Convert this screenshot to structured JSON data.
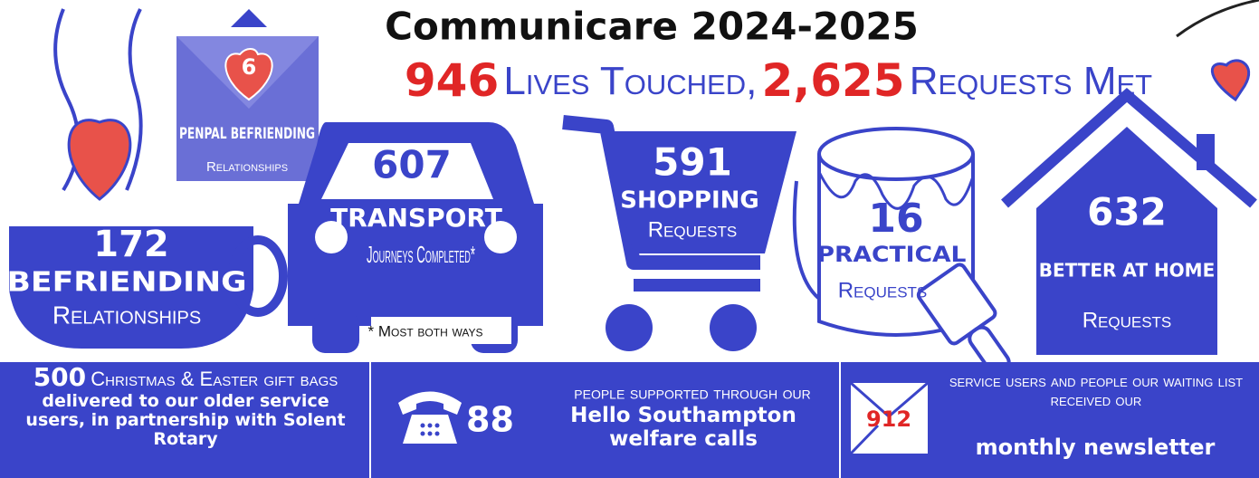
{
  "header": {
    "title": "Communicare 2024-2025",
    "lives": "946",
    "lives_label": "Lives Touched,",
    "requests": "2,625",
    "requests_label": "Requests Met"
  },
  "items": [
    {
      "number": "172",
      "title": "BEFRIENDING",
      "subtitle": "Relationships"
    },
    {
      "number": "6",
      "title": "PENPAL BEFRIENDING",
      "subtitle": "Relationships"
    },
    {
      "number": "607",
      "title": "TRANSPORT",
      "subtitle": "Journeys Completed*",
      "note": "* Most both ways"
    },
    {
      "number": "591",
      "title": "SHOPPING",
      "subtitle": "Requests"
    },
    {
      "number": "16",
      "title": "PRACTICAL",
      "subtitle": "Requests"
    },
    {
      "number": "632",
      "title": "BETTER AT HOME",
      "subtitle": "Requests"
    }
  ],
  "footer": [
    {
      "number": "500",
      "lead": "Christmas & Easter gift bags",
      "text": "delivered to our older service users, in partnership with Solent Rotary"
    },
    {
      "number": "88",
      "lead": "people supported through our",
      "text": "Hello Southampton welfare calls"
    },
    {
      "number": "912",
      "lead": "service users and people our waiting list received our",
      "text": "monthly newsletter"
    }
  ]
}
